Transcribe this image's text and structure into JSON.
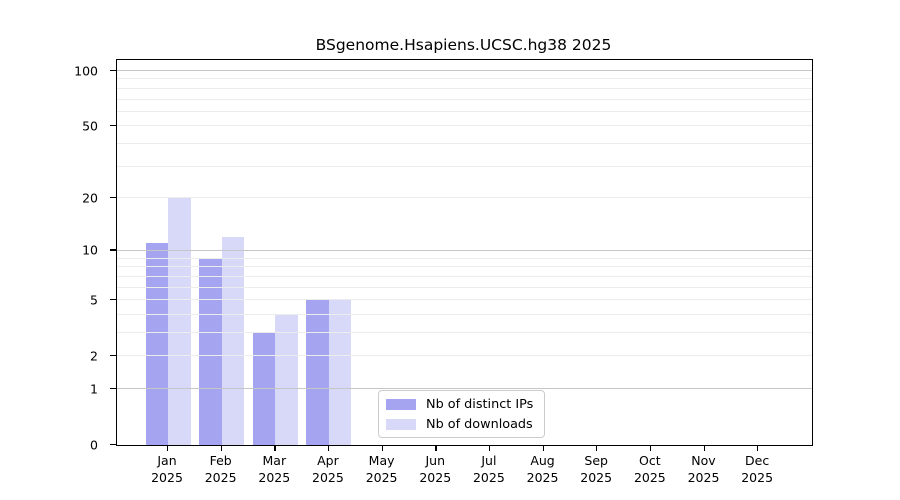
{
  "title": "BSgenome.Hsapiens.UCSC.hg38 2025",
  "chart_data": {
    "type": "bar",
    "title": "BSgenome.Hsapiens.UCSC.hg38 2025",
    "categories": [
      "Jan",
      "Feb",
      "Mar",
      "Apr",
      "May",
      "Jun",
      "Jul",
      "Aug",
      "Sep",
      "Oct",
      "Nov",
      "Dec"
    ],
    "year_label": "2025",
    "series": [
      {
        "name": "Nb of distinct IPs",
        "color": "#a4a4f0",
        "values": [
          11,
          9,
          3,
          5,
          0,
          0,
          0,
          0,
          0,
          0,
          0,
          0
        ]
      },
      {
        "name": "Nb of downloads",
        "color": "#d8d8f8",
        "values": [
          20,
          12,
          4,
          5,
          0,
          0,
          0,
          0,
          0,
          0,
          0,
          0
        ]
      }
    ],
    "xlabel": "",
    "ylabel": "",
    "yscale": "log1p",
    "ylim": [
      0,
      114
    ],
    "yticks": [
      100,
      50,
      20,
      10,
      5,
      2,
      1,
      0
    ],
    "grid": {
      "major_values": [
        1,
        10,
        100
      ],
      "minor_values": [
        2,
        3,
        4,
        5,
        6,
        7,
        8,
        9,
        20,
        30,
        40,
        50,
        60,
        70,
        80,
        90
      ],
      "major_color": "#c6c6c6",
      "minor_color": "#ececec"
    },
    "legend_position": "lower center"
  }
}
